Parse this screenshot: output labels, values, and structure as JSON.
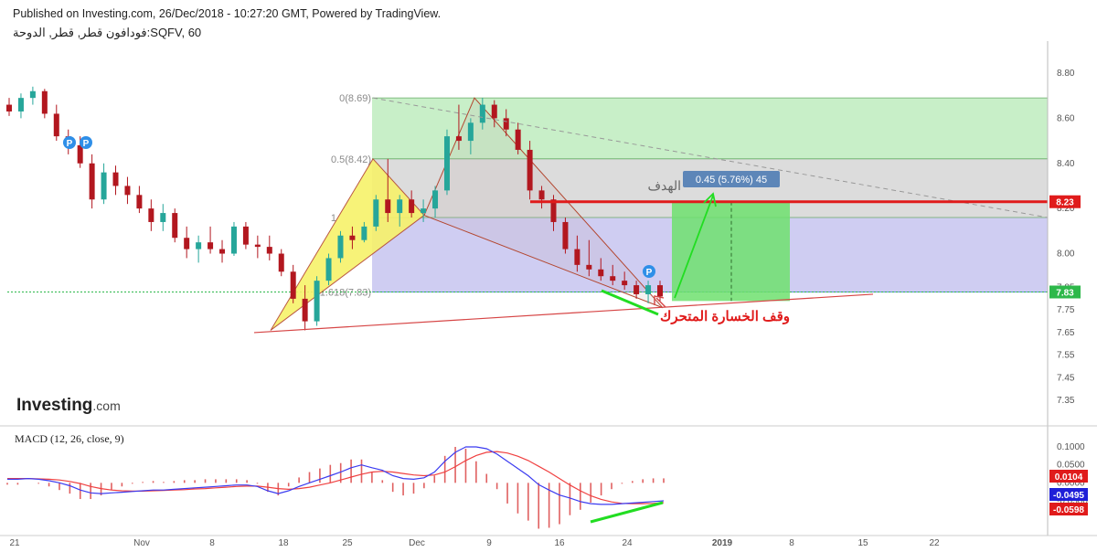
{
  "header": {
    "published": "Published on Investing.com, 26/Dec/2018 - 10:27:20 GMT, Powered by TradingView.",
    "symbol": "فودافون قطر, قطر, الدوحة:SQFV, 60"
  },
  "logo": {
    "name": "Investing",
    "suffix": ".com"
  },
  "colors": {
    "up": "#26a69a",
    "down": "#b2171f",
    "target_line": "#e01b1b",
    "fib_green": "#c8efc8",
    "fib_gray": "#dcdcdc",
    "fib_blue": "#cfcdf2",
    "pattern_yellow": "#f7f26a",
    "target_box": "#6fe06f",
    "macd_line": "#3b3bf0",
    "signal_line": "#f04040"
  },
  "chart_data": [
    {
      "type": "candlestick",
      "y_axis": {
        "ticks": [
          "8.80",
          "8.60",
          "8.40",
          "8.20",
          "8.00",
          "7.85",
          "7.75",
          "7.65",
          "7.55",
          "7.45",
          "7.35"
        ]
      },
      "x_axis": {
        "ticks": [
          "21",
          "Nov",
          "8",
          "18",
          "25",
          "Dec",
          "9",
          "16",
          "24",
          "2019",
          "8",
          "15",
          "22"
        ]
      },
      "price_labels": [
        {
          "value": "8.23",
          "color": "#e01b1b"
        },
        {
          "value": "7.83",
          "color": "#2db84a"
        }
      ],
      "fibonacci": [
        {
          "label": "0(8.69)",
          "price": 8.69
        },
        {
          "label": "0.5(8.42)",
          "price": 8.42
        },
        {
          "label": "1",
          "price": 8.16
        },
        {
          "label": "1.618(7.83)",
          "price": 7.83
        }
      ],
      "target_box_label": "0.45 (5.76%) 45",
      "annotations": {
        "target": "الهدف",
        "trailing_stop": "وقف الخسارة المتحرك",
        "pivot_marker": "P"
      },
      "ohlc": [
        [
          8.66,
          8.69,
          8.61,
          8.63
        ],
        [
          8.63,
          8.71,
          8.6,
          8.69
        ],
        [
          8.69,
          8.74,
          8.66,
          8.72
        ],
        [
          8.72,
          8.73,
          8.6,
          8.62
        ],
        [
          8.62,
          8.66,
          8.5,
          8.52
        ],
        [
          8.52,
          8.55,
          8.44,
          8.48
        ],
        [
          8.48,
          8.52,
          8.38,
          8.4
        ],
        [
          8.4,
          8.44,
          8.2,
          8.24
        ],
        [
          8.24,
          8.4,
          8.22,
          8.36
        ],
        [
          8.36,
          8.39,
          8.26,
          8.3
        ],
        [
          8.3,
          8.34,
          8.22,
          8.26
        ],
        [
          8.26,
          8.3,
          8.18,
          8.2
        ],
        [
          8.2,
          8.24,
          8.1,
          8.14
        ],
        [
          8.14,
          8.22,
          8.1,
          8.18
        ],
        [
          8.18,
          8.2,
          8.05,
          8.07
        ],
        [
          8.07,
          8.12,
          7.98,
          8.02
        ],
        [
          8.02,
          8.08,
          7.96,
          8.05
        ],
        [
          8.05,
          8.12,
          8.0,
          8.02
        ],
        [
          8.02,
          8.06,
          7.96,
          8.0
        ],
        [
          8.0,
          8.14,
          7.99,
          8.12
        ],
        [
          8.12,
          8.14,
          8.02,
          8.04
        ],
        [
          8.04,
          8.08,
          7.98,
          8.03
        ],
        [
          8.03,
          8.08,
          7.97,
          8.0
        ],
        [
          8.0,
          8.02,
          7.9,
          7.92
        ],
        [
          7.92,
          7.95,
          7.78,
          7.8
        ],
        [
          7.8,
          7.86,
          7.66,
          7.7
        ],
        [
          7.7,
          7.9,
          7.68,
          7.88
        ],
        [
          7.88,
          8.0,
          7.86,
          7.98
        ],
        [
          7.98,
          8.1,
          7.96,
          8.08
        ],
        [
          8.08,
          8.12,
          8.02,
          8.06
        ],
        [
          8.06,
          8.14,
          8.05,
          8.12
        ],
        [
          8.12,
          8.26,
          8.1,
          8.24
        ],
        [
          8.24,
          8.42,
          8.14,
          8.18
        ],
        [
          8.18,
          8.26,
          8.12,
          8.24
        ],
        [
          8.24,
          8.28,
          8.16,
          8.18
        ],
        [
          8.18,
          8.24,
          8.14,
          8.2
        ],
        [
          8.2,
          8.3,
          8.16,
          8.28
        ],
        [
          8.28,
          8.55,
          8.26,
          8.52
        ],
        [
          8.52,
          8.66,
          8.46,
          8.5
        ],
        [
          8.5,
          8.6,
          8.44,
          8.58
        ],
        [
          8.58,
          8.69,
          8.55,
          8.66
        ],
        [
          8.66,
          8.68,
          8.56,
          8.6
        ],
        [
          8.6,
          8.64,
          8.52,
          8.55
        ],
        [
          8.55,
          8.58,
          8.44,
          8.46
        ],
        [
          8.46,
          8.5,
          8.24,
          8.28
        ],
        [
          8.28,
          8.3,
          8.2,
          8.24
        ],
        [
          8.24,
          8.26,
          8.1,
          8.14
        ],
        [
          8.14,
          8.16,
          8.0,
          8.02
        ],
        [
          8.02,
          8.08,
          7.92,
          7.95
        ],
        [
          7.95,
          8.06,
          7.9,
          7.93
        ],
        [
          7.93,
          7.98,
          7.88,
          7.9
        ],
        [
          7.9,
          7.95,
          7.86,
          7.88
        ],
        [
          7.88,
          7.92,
          7.84,
          7.86
        ],
        [
          7.86,
          7.88,
          7.8,
          7.82
        ],
        [
          7.82,
          7.88,
          7.78,
          7.86
        ],
        [
          7.86,
          7.88,
          7.79,
          7.81
        ]
      ]
    },
    {
      "type": "macd",
      "title": "MACD (12, 26, close, 9)",
      "y_axis": {
        "ticks": [
          "0.1000",
          "0.0500",
          "0.0000",
          "-0.0500"
        ]
      },
      "value_labels": [
        {
          "value": "0.0104",
          "color": "#e01b1b"
        },
        {
          "value": "-0.0495",
          "color": "#1f1fd8"
        },
        {
          "value": "-0.0598",
          "color": "#e01b1b"
        }
      ],
      "macd": [
        0.01,
        0.01,
        0.012,
        0.01,
        0.006,
        0.0,
        -0.008,
        -0.02,
        -0.028,
        -0.03,
        -0.028,
        -0.026,
        -0.024,
        -0.022,
        -0.02,
        -0.02,
        -0.018,
        -0.016,
        -0.014,
        -0.012,
        -0.01,
        -0.008,
        -0.006,
        -0.006,
        -0.01,
        -0.022,
        -0.03,
        -0.022,
        -0.01,
        0.0,
        0.01,
        0.02,
        0.03,
        0.042,
        0.05,
        0.042,
        0.035,
        0.02,
        0.012,
        0.01,
        0.014,
        0.03,
        0.06,
        0.085,
        0.1,
        0.1,
        0.095,
        0.08,
        0.06,
        0.04,
        0.02,
        -0.005,
        -0.02,
        -0.034,
        -0.042,
        -0.052,
        -0.058,
        -0.06,
        -0.06,
        -0.058,
        -0.056,
        -0.054,
        -0.052,
        -0.05
      ],
      "signal": [
        0.012,
        0.012,
        0.012,
        0.011,
        0.01,
        0.008,
        0.004,
        -0.002,
        -0.01,
        -0.016,
        -0.02,
        -0.022,
        -0.023,
        -0.023,
        -0.022,
        -0.021,
        -0.02,
        -0.019,
        -0.017,
        -0.016,
        -0.014,
        -0.012,
        -0.01,
        -0.009,
        -0.009,
        -0.012,
        -0.016,
        -0.018,
        -0.016,
        -0.012,
        -0.006,
        0.0,
        0.008,
        0.016,
        0.024,
        0.03,
        0.032,
        0.03,
        0.026,
        0.022,
        0.02,
        0.022,
        0.03,
        0.045,
        0.062,
        0.076,
        0.085,
        0.087,
        0.083,
        0.074,
        0.062,
        0.046,
        0.03,
        0.012,
        -0.006,
        -0.022,
        -0.036,
        -0.046,
        -0.053,
        -0.057,
        -0.058,
        -0.058,
        -0.057,
        -0.055
      ]
    }
  ]
}
